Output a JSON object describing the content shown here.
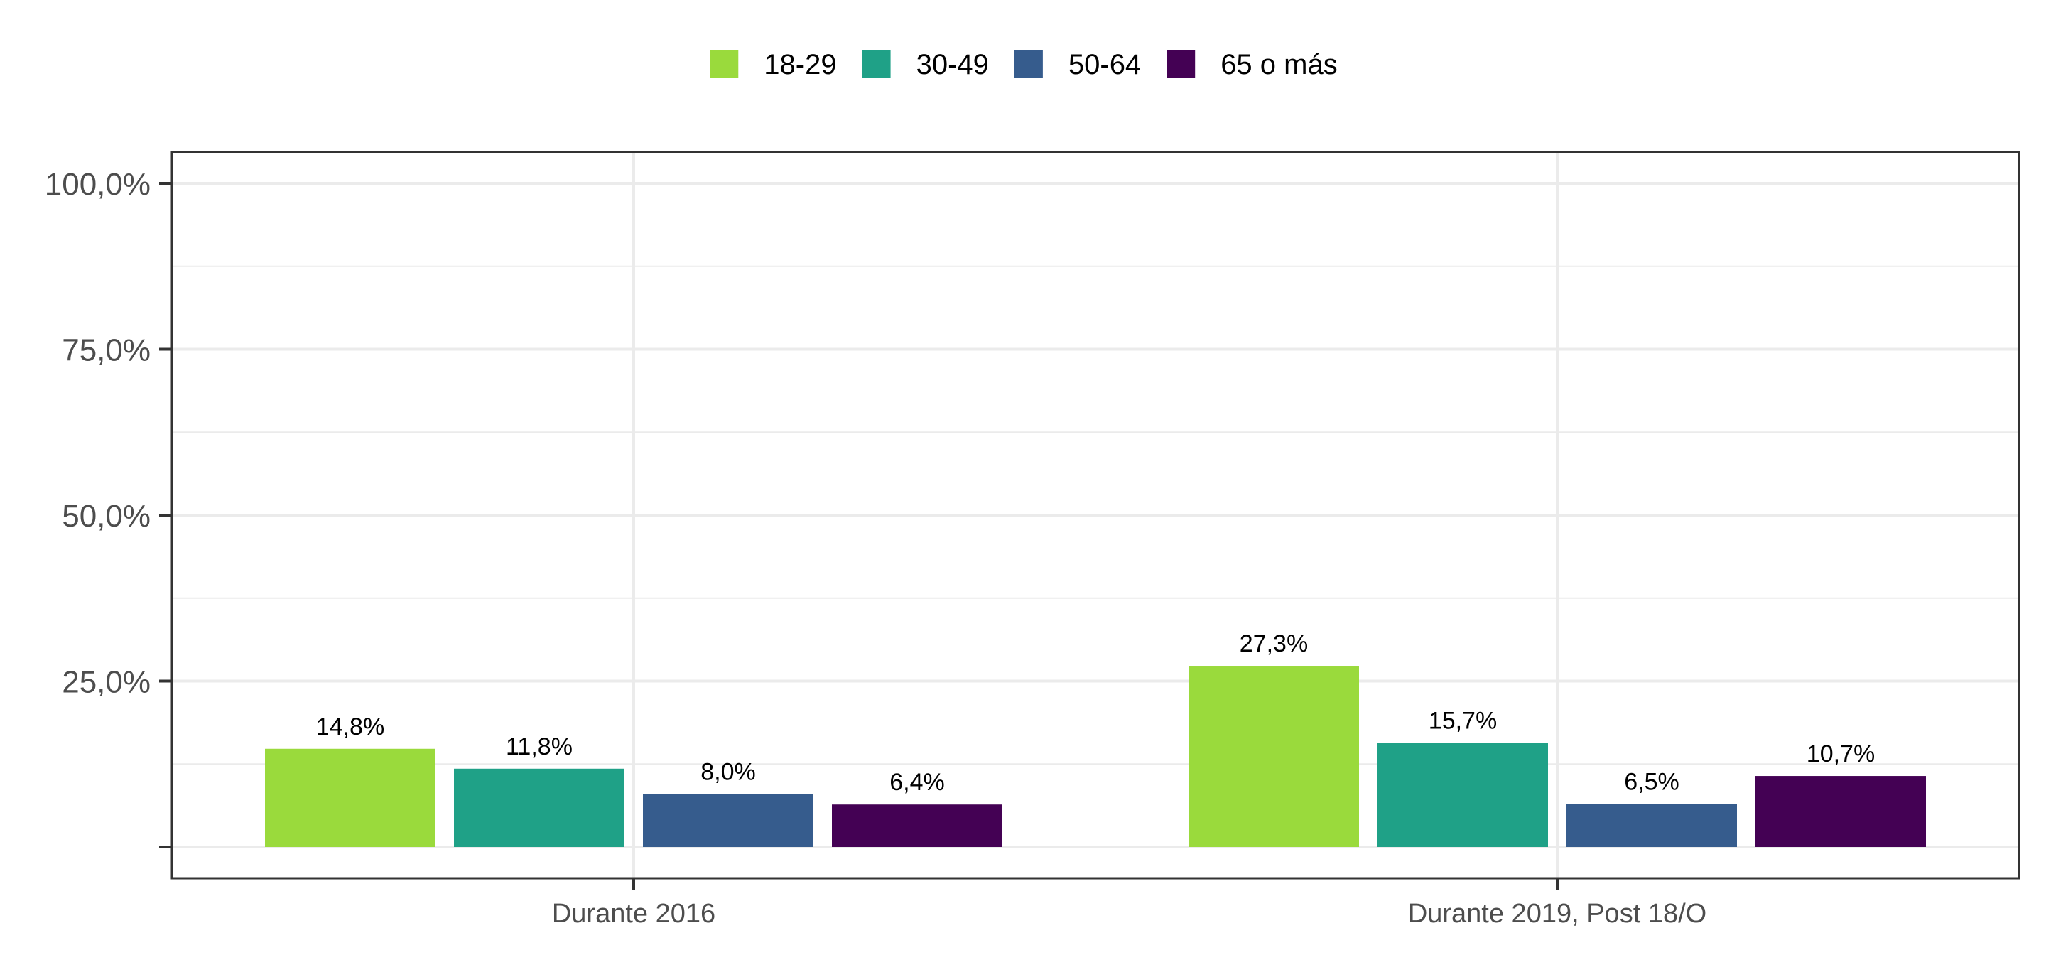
{
  "chart_data": {
    "type": "bar",
    "title": "",
    "xlabel": "",
    "ylabel": "",
    "categories": [
      "Durante 2016",
      "Durante 2019, Post 18/O"
    ],
    "series": [
      {
        "name": "18-29",
        "color": "#9ADA3C",
        "values": [
          14.8,
          27.3
        ],
        "labels": [
          "14,8%",
          "27,3%"
        ]
      },
      {
        "name": "30-49",
        "color": "#1FA187",
        "values": [
          11.8,
          15.7
        ],
        "labels": [
          "11,8%",
          "15,7%"
        ]
      },
      {
        "name": "50-64",
        "color": "#365C8D",
        "values": [
          8.0,
          6.5
        ],
        "labels": [
          "8,0%",
          "6,5%"
        ]
      },
      {
        "name": "65 o más",
        "color": "#440154",
        "values": [
          6.4,
          10.7
        ],
        "labels": [
          "6,4%",
          "10,7%"
        ]
      }
    ],
    "ylim": [
      0,
      100
    ],
    "y_ticks": [
      25,
      50,
      75,
      100
    ],
    "y_tick_labels": [
      "25,0%",
      "50,0%",
      "75,0%",
      "100,0%"
    ],
    "grid": true,
    "legend_position": "top"
  }
}
